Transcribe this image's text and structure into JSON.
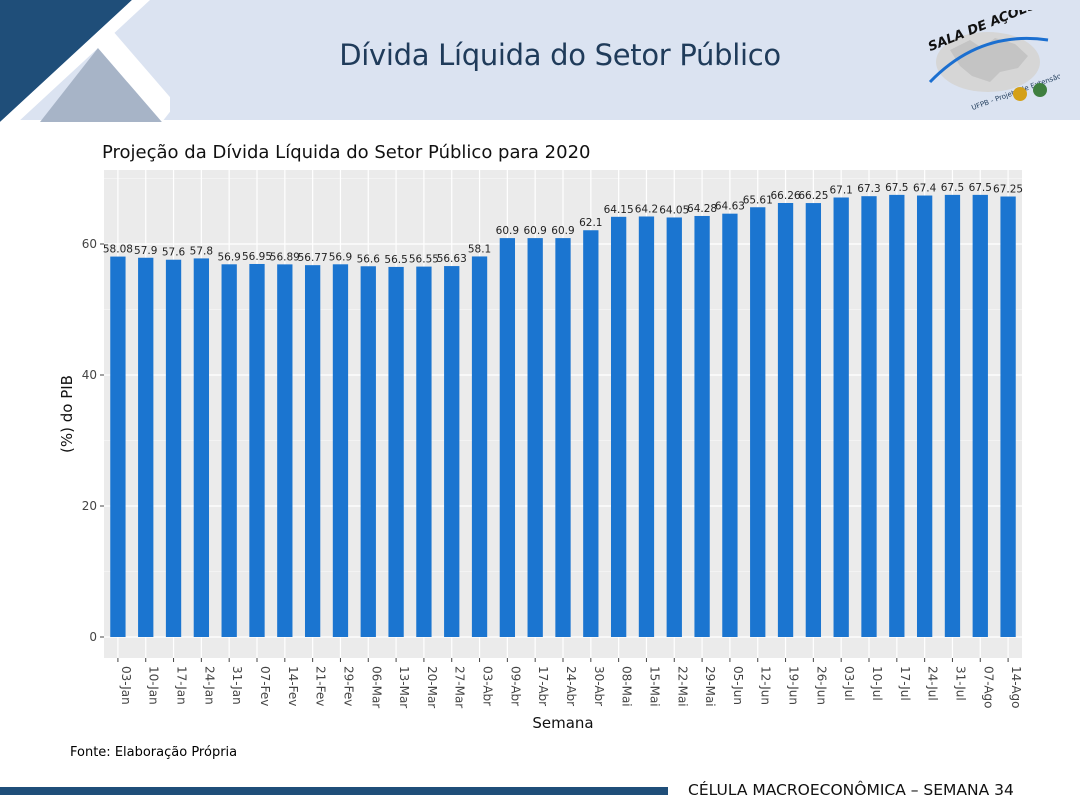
{
  "header": {
    "title": "Dívida Líquida do Setor Público",
    "logo_text": "SALA DE AÇÕES",
    "logo_subtext": "UFPB - Projeto de Extensão"
  },
  "chart_data": {
    "type": "bar",
    "title": "Projeção da Dívida Líquida do Setor Público para 2020",
    "xlabel": "Semana",
    "ylabel": "(%) do PIB",
    "ylim": [
      0,
      70
    ],
    "yticks": [
      0,
      20,
      40,
      60
    ],
    "grid": true,
    "bar_color": "#1b75d0",
    "panel_color": "#ebebeb",
    "categories": [
      "03-Jan",
      "10-Jan",
      "17-Jan",
      "24-Jan",
      "31-Jan",
      "07-Fev",
      "14-Fev",
      "21-Fev",
      "29-Fev",
      "06-Mar",
      "13-Mar",
      "20-Mar",
      "27-Mar",
      "03-Abr",
      "09-Abr",
      "17-Abr",
      "24-Abr",
      "30-Abr",
      "08-Mai",
      "15-Mai",
      "22-Mai",
      "29-Mai",
      "05-Jun",
      "12-Jun",
      "19-Jun",
      "26-Jun",
      "03-Jul",
      "10-Jul",
      "17-Jul",
      "24-Jul",
      "31-Jul",
      "07-Ago",
      "14-Ago"
    ],
    "values": [
      58.08,
      57.9,
      57.6,
      57.8,
      56.9,
      56.95,
      56.89,
      56.77,
      56.9,
      56.6,
      56.5,
      56.55,
      56.63,
      58.1,
      60.9,
      60.9,
      60.9,
      62.1,
      64.15,
      64.2,
      64.05,
      64.28,
      64.63,
      65.61,
      66.26,
      66.25,
      67.1,
      67.3,
      67.5,
      67.4,
      67.5,
      67.5,
      67.25
    ],
    "labels": [
      "58.08",
      "57.9",
      "57.6",
      "57.8",
      "56.9",
      "56.95",
      "56.89",
      "56.77",
      "56.9",
      "56.6",
      "56.5",
      "56.55",
      "56.63",
      "58.1",
      "60.9",
      "60.9",
      "60.9",
      "62.1",
      "64.15",
      "64.2",
      "64.05",
      "64.28",
      "64.63",
      "65.61",
      "66.26",
      "66.25",
      "67.1",
      "67.3",
      "67.5",
      "67.4",
      "67.5",
      "67.5",
      "67.25"
    ]
  },
  "source": "Fonte: Elaboração Própria",
  "footer": "CÉLULA MACROECONÔMICA – SEMANA 34"
}
